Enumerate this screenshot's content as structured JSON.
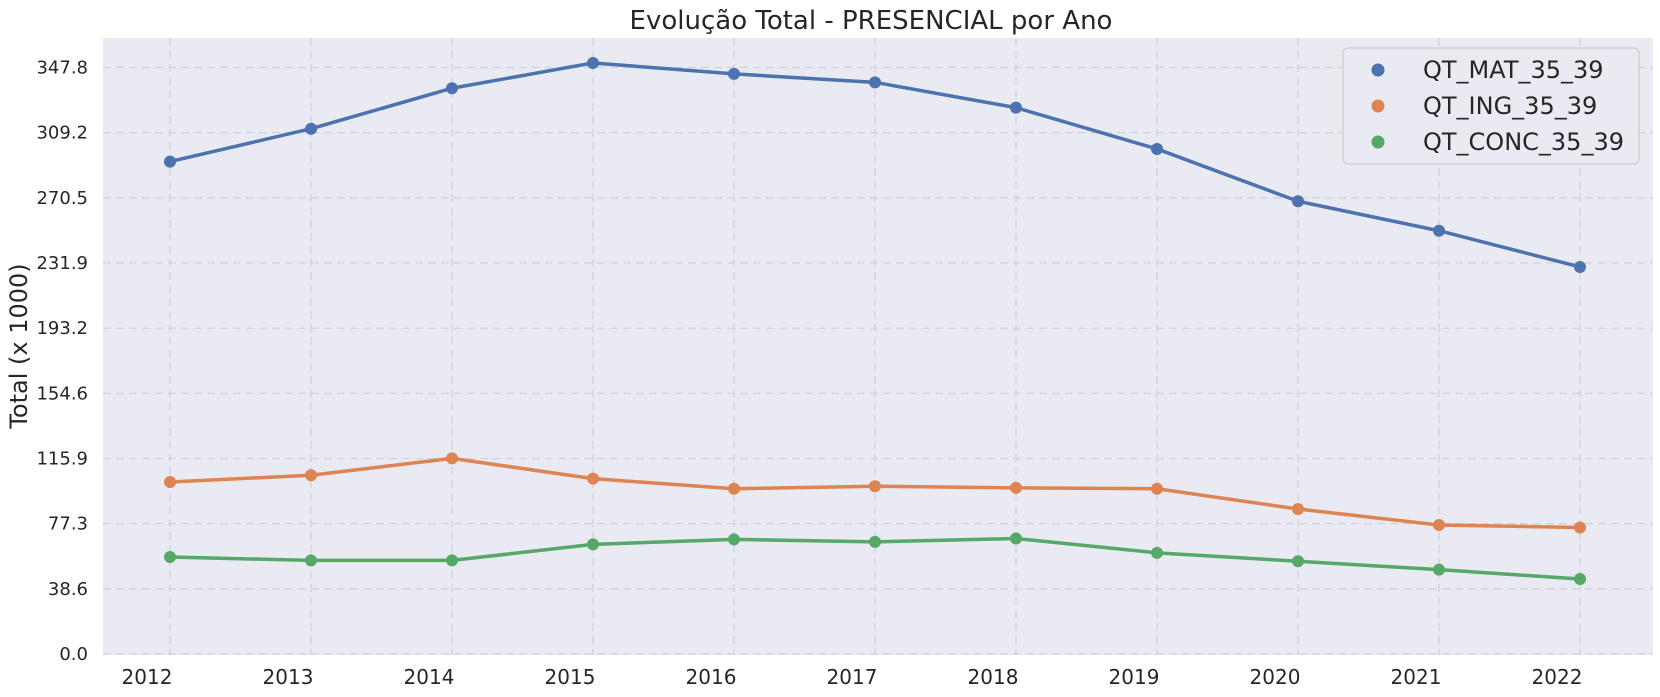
{
  "chart_data": {
    "type": "line",
    "title": "Evolução Total - PRESENCIAL por Ano",
    "xlabel": "",
    "ylabel": "Total (x 1000)",
    "x": [
      2012,
      2013,
      2014,
      2015,
      2016,
      2017,
      2018,
      2019,
      2020,
      2021,
      2022
    ],
    "x_tick_labels": [
      "2012",
      "2013",
      "2014",
      "2015",
      "2016",
      "2017",
      "2018",
      "2019",
      "2020",
      "2021",
      "2022"
    ],
    "y_ticks": [
      0.0,
      38.6,
      77.3,
      115.9,
      154.6,
      193.2,
      231.9,
      270.5,
      309.2,
      347.8
    ],
    "y_tick_labels": [
      "0.0",
      "38.6",
      "77.3",
      "115.9",
      "154.6",
      "193.2",
      "231.9",
      "270.5",
      "309.2",
      "347.8"
    ],
    "ylim": [
      0,
      365
    ],
    "grid": true,
    "legend_position": "top-right",
    "series": [
      {
        "name": "QT_MAT_35_39",
        "color": "#4c72b0",
        "values": [
          292.0,
          311.5,
          335.5,
          350.5,
          344.0,
          339.0,
          324.0,
          299.5,
          268.5,
          251.0,
          229.5
        ]
      },
      {
        "name": "QT_ING_35_39",
        "color": "#dd8452",
        "values": [
          102.0,
          106.0,
          116.0,
          104.0,
          98.0,
          99.5,
          98.5,
          98.0,
          86.0,
          76.5,
          75.0
        ]
      },
      {
        "name": "QT_CONC_35_39",
        "color": "#55a868",
        "values": [
          57.5,
          55.5,
          55.5,
          65.0,
          68.0,
          66.5,
          68.5,
          60.0,
          55.0,
          50.0,
          44.5
        ]
      }
    ]
  }
}
